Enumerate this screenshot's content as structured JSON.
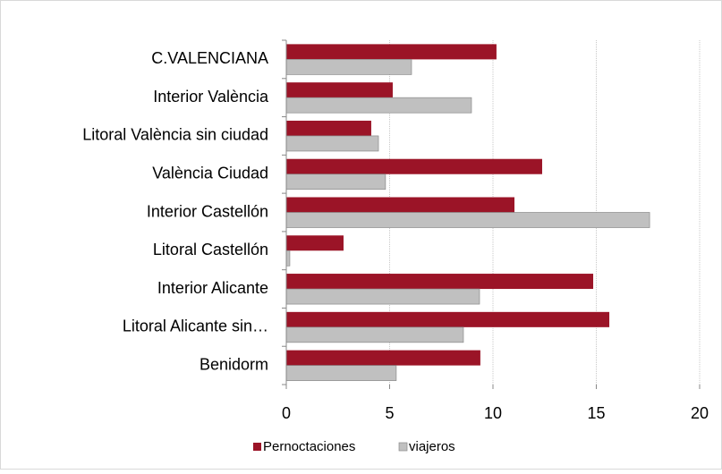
{
  "chart_data": {
    "type": "hbar",
    "categories": [
      "C.VALENCIANA",
      "Interior València",
      "Litoral València sin ciudad",
      "València Ciudad",
      "Interior Castellón",
      "Litoral Castellón",
      "Interior Alicante",
      "Litoral Alicante sin…",
      "Benidorm"
    ],
    "series": [
      {
        "name": "Pernoctaciones",
        "color": "#9b1427",
        "values": [
          10.17,
          5.15,
          4.11,
          12.38,
          11.04,
          2.77,
          14.85,
          15.63,
          9.39
        ]
      },
      {
        "name": "viajeros",
        "color": "#c0c0c0",
        "values": [
          6.06,
          8.96,
          4.46,
          4.8,
          17.58,
          0.17,
          9.35,
          8.57,
          5.32
        ]
      }
    ],
    "xlim": [
      0,
      20
    ],
    "xticks": [
      0,
      5,
      10,
      15,
      20
    ],
    "grid": true,
    "legend": "bottom"
  }
}
